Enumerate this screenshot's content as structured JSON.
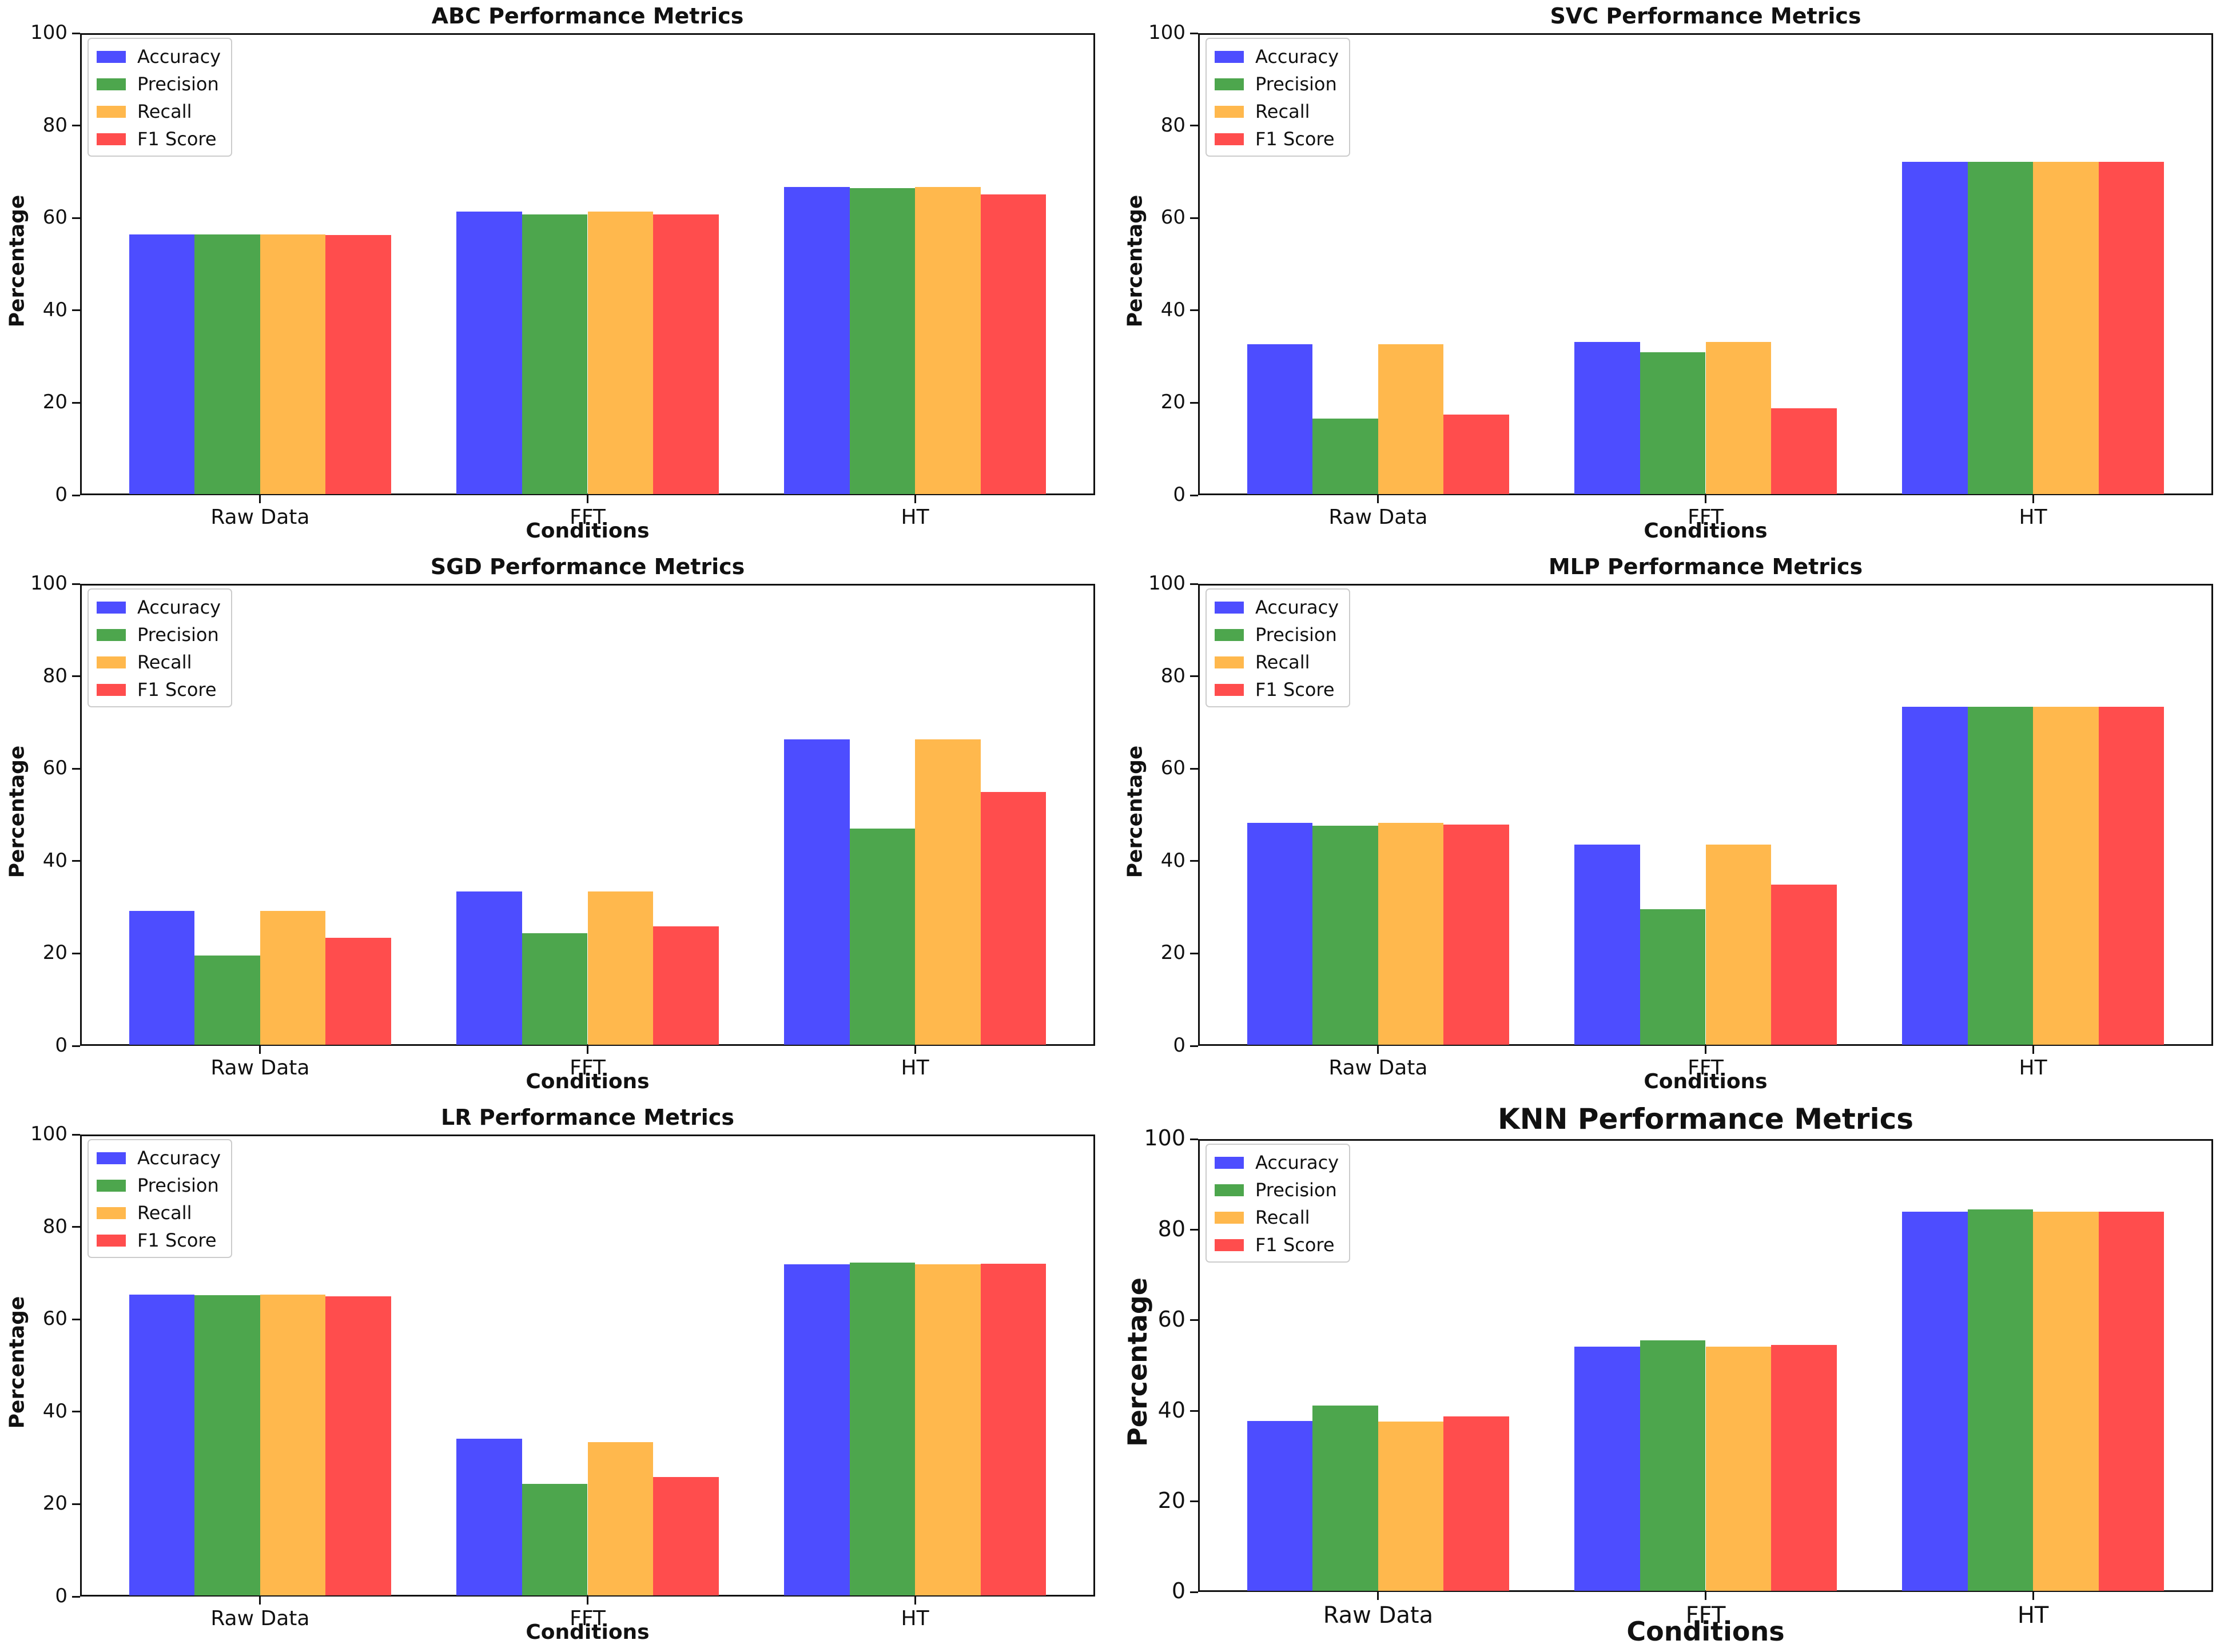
{
  "figure_background": "#ffffff",
  "chart_data": [
    {
      "id": "abc",
      "type": "bar",
      "title": "ABC Performance Metrics",
      "xlabel": "Conditions",
      "ylabel": "Percentage",
      "categories": [
        "Raw Data",
        "FFT",
        "HT"
      ],
      "series": [
        {
          "name": "Accuracy",
          "color": "#4D4DFF",
          "values": [
            56.4,
            61.4,
            66.7
          ]
        },
        {
          "name": "Precision",
          "color": "#4DA64D",
          "values": [
            56.4,
            60.8,
            66.4
          ]
        },
        {
          "name": "Recall",
          "color": "#FFB84D",
          "values": [
            56.4,
            61.4,
            66.7
          ]
        },
        {
          "name": "F1 Score",
          "color": "#FF4D4D",
          "values": [
            56.3,
            60.8,
            65.1
          ]
        }
      ],
      "ylim": [
        0,
        100
      ],
      "yticks": [
        "0",
        "20",
        "40",
        "60",
        "80",
        "100"
      ],
      "legend_position": "upper-left",
      "grid": false,
      "large_fonts": false
    },
    {
      "id": "svc",
      "type": "bar",
      "title": "SVC Performance Metrics",
      "xlabel": "Conditions",
      "ylabel": "Percentage",
      "categories": [
        "Raw Data",
        "FFT",
        "HT"
      ],
      "series": [
        {
          "name": "Accuracy",
          "color": "#4D4DFF",
          "values": [
            32.7,
            33.2,
            72.1
          ]
        },
        {
          "name": "Precision",
          "color": "#4DA64D",
          "values": [
            16.6,
            30.9,
            72.1
          ]
        },
        {
          "name": "Recall",
          "color": "#FFB84D",
          "values": [
            32.7,
            33.2,
            72.1
          ]
        },
        {
          "name": "F1 Score",
          "color": "#FF4D4D",
          "values": [
            17.4,
            18.8,
            72.1
          ]
        }
      ],
      "ylim": [
        0,
        100
      ],
      "yticks": [
        "0",
        "20",
        "40",
        "60",
        "80",
        "100"
      ],
      "legend_position": "upper-left",
      "grid": false,
      "large_fonts": false
    },
    {
      "id": "sgd",
      "type": "bar",
      "title": "SGD Performance Metrics",
      "xlabel": "Conditions",
      "ylabel": "Percentage",
      "categories": [
        "Raw Data",
        "FFT",
        "HT"
      ],
      "series": [
        {
          "name": "Accuracy",
          "color": "#4D4DFF",
          "values": [
            29.2,
            33.4,
            66.3
          ]
        },
        {
          "name": "Precision",
          "color": "#4DA64D",
          "values": [
            19.6,
            24.4,
            47.0
          ]
        },
        {
          "name": "Recall",
          "color": "#FFB84D",
          "values": [
            29.2,
            33.4,
            66.3
          ]
        },
        {
          "name": "F1 Score",
          "color": "#FF4D4D",
          "values": [
            23.4,
            25.9,
            55.0
          ]
        }
      ],
      "ylim": [
        0,
        100
      ],
      "yticks": [
        "0",
        "20",
        "40",
        "60",
        "80",
        "100"
      ],
      "legend_position": "upper-left",
      "grid": false,
      "large_fonts": false
    },
    {
      "id": "mlp",
      "type": "bar",
      "title": "MLP Performance Metrics",
      "xlabel": "Conditions",
      "ylabel": "Percentage",
      "categories": [
        "Raw Data",
        "FFT",
        "HT"
      ],
      "series": [
        {
          "name": "Accuracy",
          "color": "#4D4DFF",
          "values": [
            48.3,
            43.6,
            73.4
          ]
        },
        {
          "name": "Precision",
          "color": "#4DA64D",
          "values": [
            47.6,
            29.6,
            73.4
          ]
        },
        {
          "name": "Recall",
          "color": "#FFB84D",
          "values": [
            48.3,
            43.6,
            73.4
          ]
        },
        {
          "name": "F1 Score",
          "color": "#FF4D4D",
          "values": [
            47.9,
            34.9,
            73.4
          ]
        }
      ],
      "ylim": [
        0,
        100
      ],
      "yticks": [
        "0",
        "20",
        "40",
        "60",
        "80",
        "100"
      ],
      "legend_position": "upper-left",
      "grid": false,
      "large_fonts": false
    },
    {
      "id": "lr",
      "type": "bar",
      "title": "LR Performance Metrics",
      "xlabel": "Conditions",
      "ylabel": "Percentage",
      "categories": [
        "Raw Data",
        "FFT",
        "HT"
      ],
      "series": [
        {
          "name": "Accuracy",
          "color": "#4D4DFF",
          "values": [
            65.3,
            34.2,
            71.9
          ]
        },
        {
          "name": "Precision",
          "color": "#4DA64D",
          "values": [
            65.2,
            24.4,
            72.3
          ]
        },
        {
          "name": "Recall",
          "color": "#FFB84D",
          "values": [
            65.3,
            33.4,
            71.9
          ]
        },
        {
          "name": "F1 Score",
          "color": "#FF4D4D",
          "values": [
            65.0,
            25.9,
            72.0
          ]
        }
      ],
      "ylim": [
        0,
        100
      ],
      "yticks": [
        "0",
        "20",
        "40",
        "60",
        "80",
        "100"
      ],
      "legend_position": "upper-left",
      "grid": false,
      "large_fonts": false
    },
    {
      "id": "knn",
      "type": "bar",
      "title": "KNN Performance Metrics",
      "xlabel": "Conditions",
      "ylabel": "Percentage",
      "categories": [
        "Raw Data",
        "FFT",
        "HT"
      ],
      "series": [
        {
          "name": "Accuracy",
          "color": "#4D4DFF",
          "values": [
            37.7,
            54.2,
            84.0
          ]
        },
        {
          "name": "Precision",
          "color": "#4DA64D",
          "values": [
            41.2,
            55.5,
            84.5
          ]
        },
        {
          "name": "Recall",
          "color": "#FFB84D",
          "values": [
            37.6,
            54.2,
            84.0
          ]
        },
        {
          "name": "F1 Score",
          "color": "#FF4D4D",
          "values": [
            38.7,
            54.5,
            84.0
          ]
        }
      ],
      "ylim": [
        0,
        100
      ],
      "yticks": [
        "0",
        "20",
        "40",
        "60",
        "80",
        "100"
      ],
      "legend_position": "upper-left",
      "grid": false,
      "large_fonts": true
    }
  ]
}
